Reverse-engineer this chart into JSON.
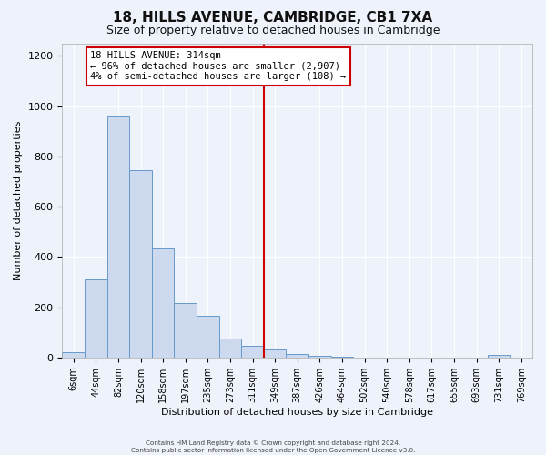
{
  "title": "18, HILLS AVENUE, CAMBRIDGE, CB1 7XA",
  "subtitle": "Size of property relative to detached houses in Cambridge",
  "xlabel": "Distribution of detached houses by size in Cambridge",
  "ylabel": "Number of detached properties",
  "bar_color": "#ccd9ee",
  "bar_edge_color": "#6699cc",
  "bin_labels": [
    "6sqm",
    "44sqm",
    "82sqm",
    "120sqm",
    "158sqm",
    "197sqm",
    "235sqm",
    "273sqm",
    "311sqm",
    "349sqm",
    "387sqm",
    "426sqm",
    "464sqm",
    "502sqm",
    "540sqm",
    "578sqm",
    "617sqm",
    "655sqm",
    "693sqm",
    "731sqm",
    "769sqm"
  ],
  "bar_heights": [
    20,
    310,
    960,
    745,
    435,
    215,
    165,
    75,
    48,
    32,
    15,
    8,
    3,
    1,
    0,
    0,
    0,
    0,
    0,
    10,
    0
  ],
  "vline_position": 8,
  "vline_color": "#cc0000",
  "annotation_title": "18 HILLS AVENUE: 314sqm",
  "annotation_line1": "← 96% of detached houses are smaller (2,907)",
  "annotation_line2": "4% of semi-detached houses are larger (108) →",
  "annotation_box_color": "#ffffff",
  "annotation_box_edge": "#cc0000",
  "footer_line1": "Contains HM Land Registry data © Crown copyright and database right 2024.",
  "footer_line2": "Contains public sector information licensed under the Open Government Licence v3.0.",
  "ylim": [
    0,
    1250
  ],
  "background_color": "#eef2fb",
  "grid_color": "#ffffff",
  "title_fontsize": 11,
  "subtitle_fontsize": 9,
  "ylabel_fontsize": 8,
  "xlabel_fontsize": 8,
  "tick_fontsize": 7
}
